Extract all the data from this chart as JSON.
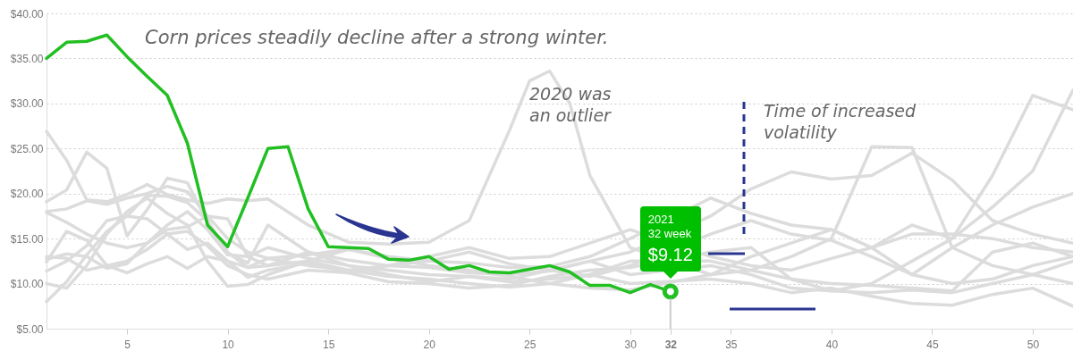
{
  "chart_data": {
    "type": "line",
    "title": "Corn prices steadily decline after a strong winter.",
    "x": [
      1,
      2,
      3,
      4,
      5,
      6,
      7,
      8,
      9,
      10,
      11,
      12,
      14,
      16,
      18,
      20,
      22,
      24,
      26,
      28,
      30,
      34,
      36,
      38,
      40,
      42,
      44,
      46,
      48,
      50,
      52
    ],
    "series": [
      {
        "color": "#dcdcdc",
        "x": [
          1,
          2,
          3,
          4,
          5,
          6,
          7,
          8,
          9,
          10,
          11,
          12,
          14,
          16,
          18,
          20,
          22,
          24,
          25,
          26,
          27,
          28,
          30,
          34,
          36,
          38,
          40,
          42,
          44,
          46,
          48,
          50,
          52
        ],
        "values": [
          26.9,
          23.7,
          19.3,
          19.1,
          19.9,
          21.0,
          19.9,
          19.3,
          18.9,
          19.4,
          19.2,
          19.4,
          16.5,
          14.6,
          14.4,
          14.6,
          17.0,
          27.0,
          32.5,
          33.6,
          30.0,
          22.0,
          14.0,
          11.0,
          11.5,
          13.0,
          15.0,
          25.2,
          25.1,
          14.0,
          12.0,
          11.0,
          10.0
        ]
      },
      {
        "color": "#dcdcdc",
        "values": [
          19.1,
          20.4,
          24.6,
          22.8,
          15.3,
          18.2,
          21.7,
          21.2,
          16.8,
          13.4,
          12.3,
          16.5,
          13.5,
          12.6,
          12.0,
          11.8,
          11.2,
          11.0,
          11.4,
          12.5,
          13.5,
          17.5,
          20.5,
          22.4,
          21.6,
          22.0,
          24.5,
          21.5,
          17.0,
          15.5,
          14.5
        ]
      },
      {
        "color": "#dcdcdc",
        "values": [
          18.0,
          18.3,
          19.2,
          18.8,
          19.5,
          20.0,
          20.8,
          20.2,
          17.5,
          15.0,
          13.5,
          12.8,
          13.2,
          13.8,
          13.0,
          12.5,
          12.3,
          11.8,
          11.9,
          13.0,
          15.0,
          19.5,
          17.8,
          16.5,
          16.0,
          14.0,
          11.0,
          10.0,
          10.5,
          12.0,
          13.0
        ]
      },
      {
        "color": "#dcdcdc",
        "values": [
          17.9,
          16.8,
          15.5,
          14.5,
          14.0,
          14.5,
          16.5,
          18.0,
          16.0,
          13.2,
          13.0,
          14.0,
          12.8,
          12.0,
          11.5,
          11.0,
          10.8,
          10.2,
          10.5,
          11.0,
          12.5,
          12.5,
          11.5,
          10.5,
          10.0,
          9.8,
          9.5,
          9.2,
          13.5,
          14.5,
          13.0
        ]
      },
      {
        "color": "#dcdcdc",
        "values": [
          12.7,
          13.3,
          13.0,
          11.7,
          12.2,
          14.5,
          16.0,
          16.3,
          17.5,
          17.2,
          13.0,
          12.0,
          12.5,
          11.5,
          10.8,
          10.5,
          10.0,
          9.6,
          10.0,
          11.0,
          10.0,
          10.5,
          10.0,
          9.0,
          9.5,
          8.6,
          7.8,
          7.6,
          8.8,
          9.5,
          7.5
        ]
      },
      {
        "color": "#dcdcdc",
        "values": [
          12.4,
          15.8,
          14.8,
          12.0,
          11.2,
          12.2,
          13.0,
          11.7,
          13.0,
          12.5,
          11.8,
          12.8,
          12.0,
          11.5,
          12.0,
          12.5,
          13.5,
          12.2,
          11.5,
          10.8,
          12.0,
          15.5,
          17.0,
          15.5,
          14.8,
          13.0,
          11.0,
          14.0,
          16.5,
          18.5,
          20.0
        ]
      },
      {
        "color": "#dcdcdc",
        "values": [
          11.4,
          12.5,
          14.2,
          17.0,
          17.5,
          19.8,
          19.7,
          19.0,
          17.0,
          13.5,
          11.8,
          12.0,
          13.5,
          12.0,
          11.0,
          10.2,
          10.8,
          10.5,
          11.5,
          12.5,
          11.0,
          12.0,
          11.0,
          9.5,
          9.2,
          9.0,
          9.3,
          9.0,
          10.0,
          11.0,
          12.5
        ]
      },
      {
        "color": "#dcdcdc",
        "values": [
          10.0,
          9.5,
          12.0,
          15.5,
          18.0,
          19.5,
          17.8,
          16.5,
          12.5,
          9.7,
          9.9,
          11.0,
          12.5,
          13.8,
          12.8,
          12.0,
          11.5,
          10.8,
          10.0,
          9.5,
          9.3,
          11.0,
          13.0,
          14.5,
          16.0,
          14.0,
          15.5,
          15.5,
          15.0,
          14.0,
          13.5
        ]
      },
      {
        "color": "#dcdcdc",
        "values": [
          8.0,
          10.2,
          13.2,
          15.8,
          17.5,
          17.2,
          15.5,
          13.8,
          14.5,
          12.5,
          10.7,
          11.5,
          12.3,
          11.2,
          10.2,
          10.0,
          9.5,
          9.8,
          10.8,
          11.5,
          11.8,
          13.5,
          14.0,
          10.5,
          9.2,
          10.0,
          12.5,
          15.0,
          18.5,
          22.5,
          31.5
        ]
      },
      {
        "color": "#dcdcdc",
        "values": [
          13.0,
          12.8,
          11.5,
          12.0,
          12.5,
          13.8,
          15.5,
          15.8,
          14.2,
          12.0,
          11.0,
          10.5,
          11.5,
          11.2,
          12.0,
          13.0,
          14.0,
          12.8,
          13.0,
          14.5,
          16.0,
          13.0,
          12.0,
          11.5,
          12.8,
          14.0,
          16.5,
          15.0,
          22.0,
          30.9,
          29.3
        ]
      },
      {
        "name": "2021",
        "color": "#22bf22",
        "x": [
          1,
          2,
          3,
          4,
          5,
          6,
          7,
          8,
          9,
          10,
          11,
          12,
          13,
          14,
          15,
          16,
          17,
          18,
          19,
          20,
          21,
          22,
          23,
          24,
          25,
          26,
          27,
          28,
          29,
          30,
          31,
          32
        ],
        "values": [
          35.0,
          36.8,
          36.9,
          37.6,
          35.2,
          33.0,
          30.9,
          25.6,
          16.5,
          14.1,
          19.5,
          25.0,
          25.2,
          18.3,
          14.1,
          14.0,
          13.9,
          12.7,
          12.6,
          13.0,
          11.6,
          12.0,
          11.3,
          11.2,
          11.6,
          12.0,
          11.3,
          9.8,
          9.8,
          9.0,
          9.9,
          9.12
        ]
      }
    ],
    "xlim": [
      1,
      52
    ],
    "xticks": [
      5,
      10,
      15,
      20,
      25,
      30,
      32,
      35,
      40,
      45,
      50
    ],
    "ylim": [
      5,
      40
    ],
    "yticks": [
      {
        "value": 5,
        "label": "$5.00"
      },
      {
        "value": 10,
        "label": "$10.00"
      },
      {
        "value": 15,
        "label": "$15.00"
      },
      {
        "value": 20,
        "label": "$20.00"
      },
      {
        "value": 25,
        "label": "$25.00"
      },
      {
        "value": 30,
        "label": "$30.00"
      },
      {
        "value": 35,
        "label": "$35.00"
      },
      {
        "value": 40,
        "label": "$40.00"
      }
    ],
    "grid": "y",
    "annotations": [
      "2020 was\nan outlier",
      "Time of increased\nvolatility",
      "32 week",
      {
        "text": "$9.12",
        "x": 32,
        "y": 9.12
      }
    ]
  }
}
